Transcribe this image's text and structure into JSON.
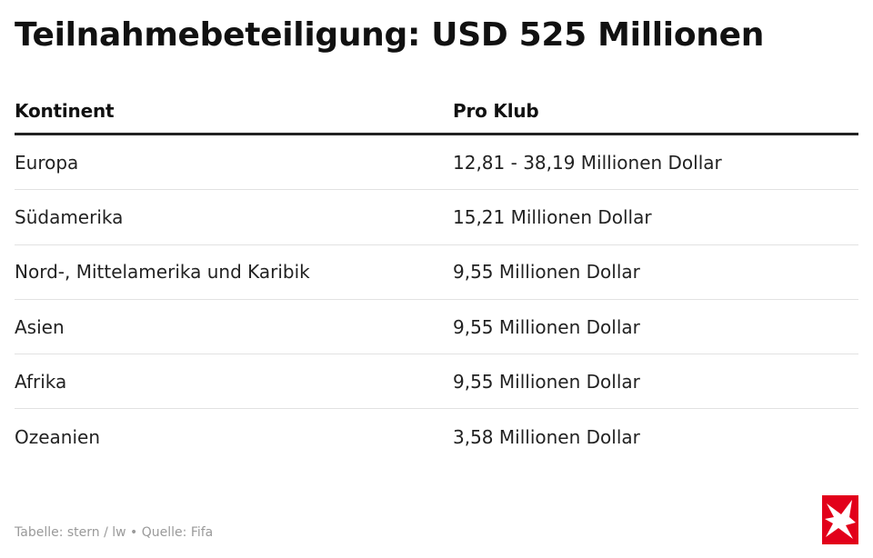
{
  "title": "Teilnahmebeteiligung: USD 525 Millionen",
  "table": {
    "headers": {
      "continent": "Kontinent",
      "per_club": "Pro Klub"
    },
    "rows": [
      {
        "continent": "Europa",
        "per_club": "12,81 - 38,19 Millionen Dollar"
      },
      {
        "continent": "Südamerika",
        "per_club": "15,21 Millionen Dollar"
      },
      {
        "continent": "Nord-, Mittelamerika und Karibik",
        "per_club": "9,55 Millionen Dollar"
      },
      {
        "continent": "Asien",
        "per_club": "9,55 Millionen Dollar"
      },
      {
        "continent": "Afrika",
        "per_club": "9,55 Millionen Dollar"
      },
      {
        "continent": "Ozeanien",
        "per_club": "3,58 Millionen Dollar"
      }
    ]
  },
  "footer": {
    "credit": "Tabelle: stern / lw • Quelle: Fifa"
  },
  "logo": {
    "icon": "stern-star-logo",
    "background_color": "#e2001a",
    "star_color": "#ffffff"
  }
}
